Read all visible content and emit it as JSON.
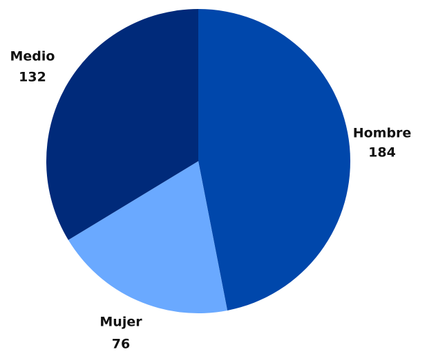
{
  "chart_data": {
    "type": "pie",
    "categories": [
      "Hombre",
      "Mujer",
      "Medio"
    ],
    "values": [
      184,
      76,
      132
    ],
    "colors": [
      "#0047ab",
      "#6aa9ff",
      "#002a7a"
    ]
  }
}
